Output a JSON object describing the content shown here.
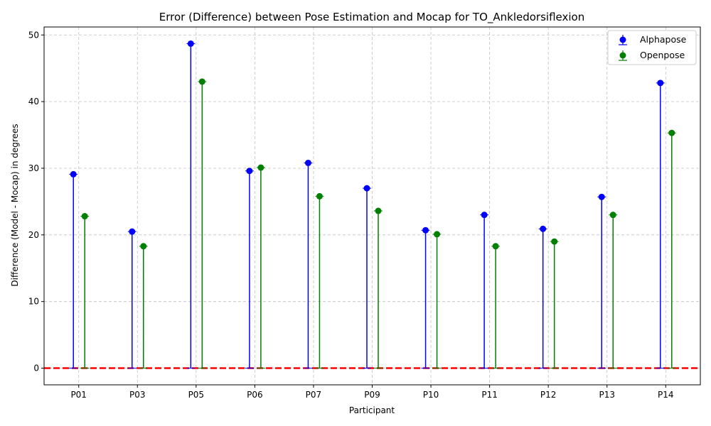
{
  "chart_data": {
    "type": "scatter",
    "title": "Error (Difference) between Pose Estimation and Mocap for TO_Ankledorsiflexion",
    "xlabel": "Participant",
    "ylabel": "Difference (Model - Mocap) in degrees",
    "categories": [
      "P01",
      "P03",
      "P05",
      "P06",
      "P07",
      "P09",
      "P10",
      "P11",
      "P12",
      "P13",
      "P14"
    ],
    "series": [
      {
        "name": "Alphapose",
        "color": "#0000ff",
        "values": [
          29.1,
          20.5,
          48.7,
          29.6,
          30.8,
          27.0,
          20.7,
          23.0,
          20.9,
          25.7,
          42.8
        ]
      },
      {
        "name": "Openpose",
        "color": "#008000",
        "values": [
          22.8,
          18.3,
          43.0,
          30.1,
          25.8,
          23.6,
          20.1,
          18.3,
          19.0,
          23.0,
          35.3
        ]
      }
    ],
    "ylim": [
      -2.5,
      51.2
    ],
    "yticks": [
      0,
      10,
      20,
      30,
      40,
      50
    ],
    "reference_line": {
      "y": 0,
      "color": "#ff0000",
      "style": "dashed"
    },
    "grid": true,
    "legend_position": "top-right"
  }
}
